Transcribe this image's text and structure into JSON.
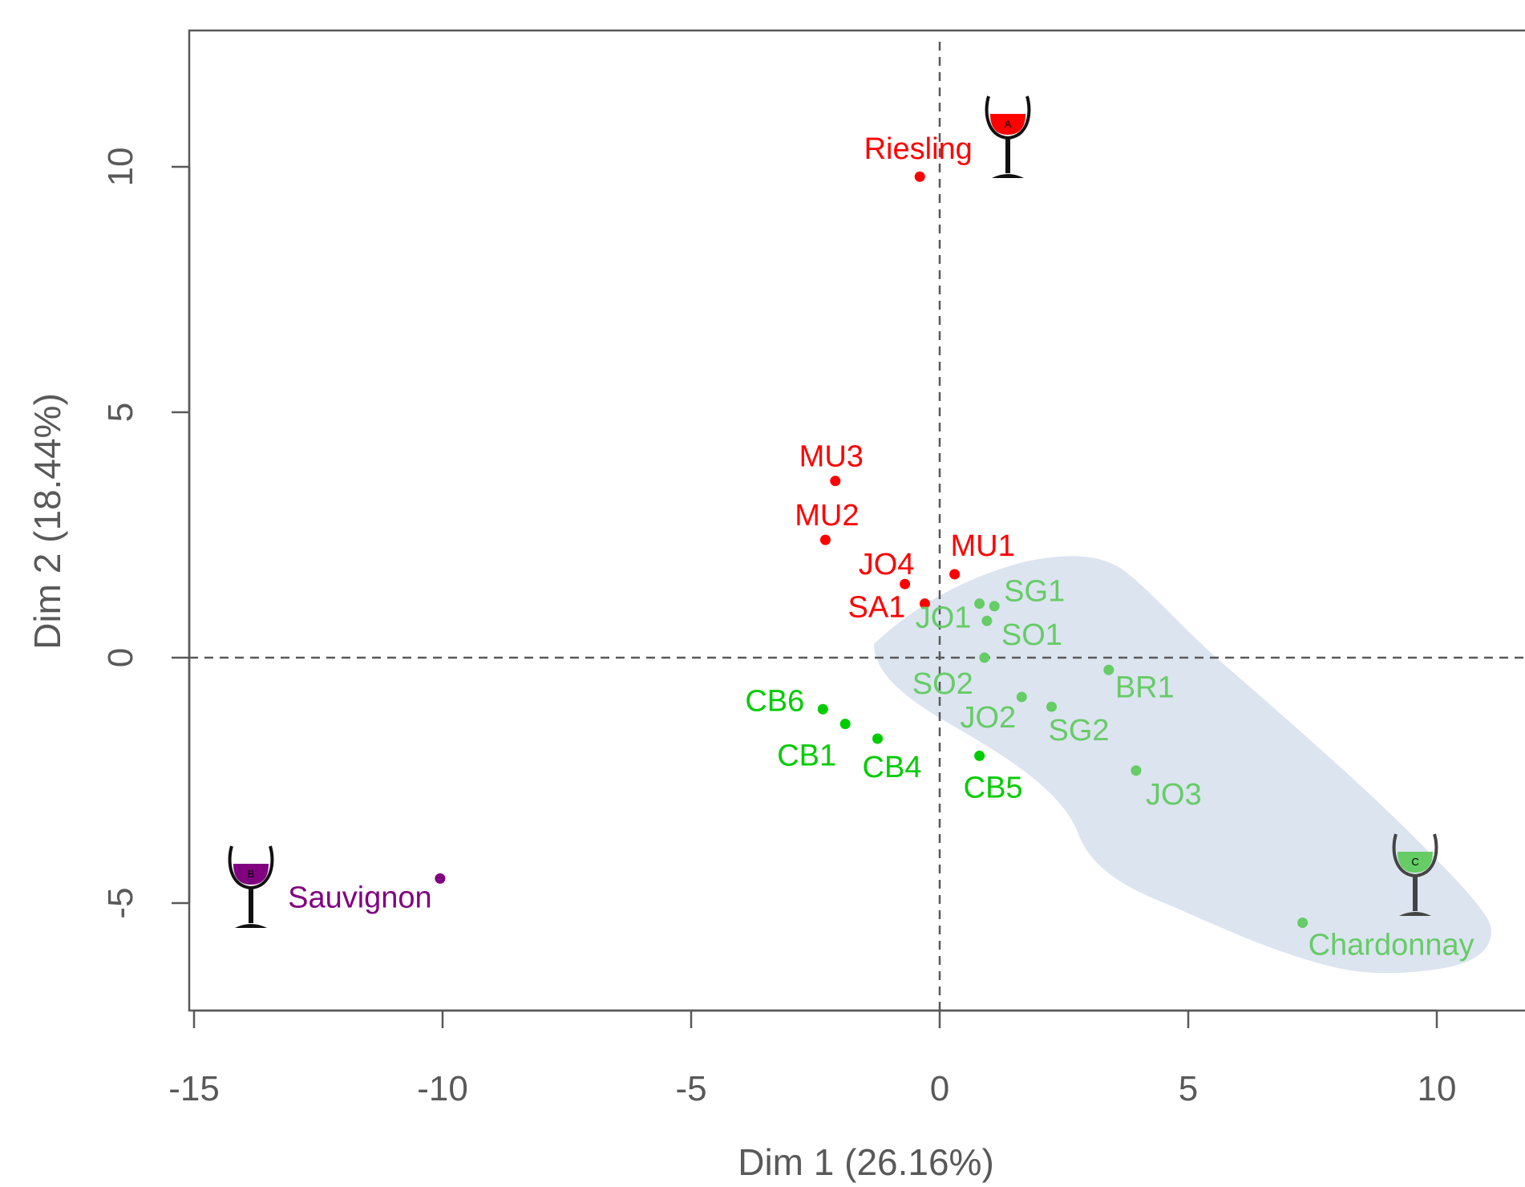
{
  "chart_data": {
    "type": "scatter",
    "xlabel": "Dim 1 (26.16%)",
    "ylabel": "Dim 2 (18.44%)",
    "xlim": [
      -15.2,
      11.9
    ],
    "ylim": [
      -7.2,
      12.8
    ],
    "x_ticks": [
      -15,
      -10,
      -5,
      0,
      5,
      10
    ],
    "y_ticks": [
      -5,
      0,
      5,
      10
    ],
    "x_tick_labels": [
      "-15",
      "-10",
      "-5",
      "0",
      "5",
      "10"
    ],
    "y_tick_labels": [
      "-5",
      "0",
      "5",
      "10"
    ],
    "reference_lines": {
      "x": 0,
      "y": 0
    },
    "grid": false,
    "colors": {
      "riesling": "#ff0000",
      "sauvignon": "#800080",
      "chardonnay": "#66cc66",
      "cb_group": "#00cc00",
      "region": "#dce4f0",
      "axis": "#595959"
    },
    "points": [
      {
        "label": "Riesling",
        "x": -0.4,
        "y": 9.8,
        "group": "riesling"
      },
      {
        "label": "MU3",
        "x": -2.1,
        "y": 3.6,
        "group": "riesling"
      },
      {
        "label": "MU2",
        "x": -2.3,
        "y": 2.4,
        "group": "riesling"
      },
      {
        "label": "MU1",
        "x": 0.3,
        "y": 1.7,
        "group": "riesling"
      },
      {
        "label": "JO4",
        "x": -0.7,
        "y": 1.5,
        "group": "riesling"
      },
      {
        "label": "SA1",
        "x": -0.3,
        "y": 1.1,
        "group": "riesling"
      },
      {
        "label": "SG1",
        "x": 1.1,
        "y": 1.05,
        "group": "chardonnay"
      },
      {
        "label": "JO1",
        "x": 0.8,
        "y": 1.1,
        "group": "chardonnay"
      },
      {
        "label": "SO1",
        "x": 0.95,
        "y": 0.75,
        "group": "chardonnay"
      },
      {
        "label": "SO2",
        "x": 0.9,
        "y": 0.0,
        "group": "chardonnay"
      },
      {
        "label": "BR1",
        "x": 3.4,
        "y": -0.25,
        "group": "chardonnay"
      },
      {
        "label": "JO2",
        "x": 1.65,
        "y": -0.8,
        "group": "chardonnay"
      },
      {
        "label": "SG2",
        "x": 2.25,
        "y": -1.0,
        "group": "chardonnay"
      },
      {
        "label": "JO3",
        "x": 3.95,
        "y": -2.3,
        "group": "chardonnay"
      },
      {
        "label": "Chardonnay",
        "x": 7.3,
        "y": -5.4,
        "group": "chardonnay"
      },
      {
        "label": "CB6",
        "x": -2.35,
        "y": -1.05,
        "group": "cb_group"
      },
      {
        "label": "CB1",
        "x": -1.9,
        "y": -1.35,
        "group": "cb_group"
      },
      {
        "label": "CB4",
        "x": -1.25,
        "y": -1.65,
        "group": "cb_group"
      },
      {
        "label": "CB5",
        "x": 0.8,
        "y": -2.0,
        "group": "cb_group"
      },
      {
        "label": "Sauvignon",
        "x": -10.05,
        "y": -4.5,
        "group": "sauvignon"
      }
    ],
    "wine_glass_icons": [
      {
        "group": "riesling",
        "letter": "A"
      },
      {
        "group": "sauvignon",
        "letter": "B"
      },
      {
        "group": "chardonnay",
        "letter": "C"
      }
    ]
  }
}
